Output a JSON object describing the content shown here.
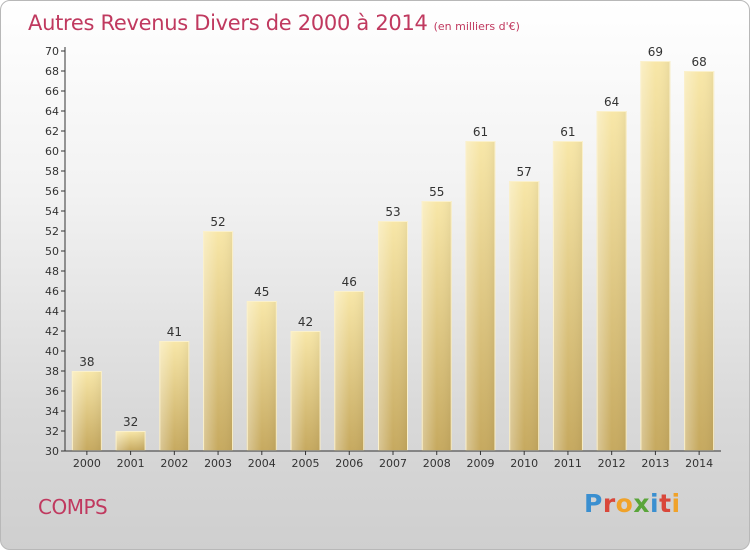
{
  "header": {
    "title": "Autres Revenus Divers de 2000 à 2014",
    "subtitle": "(en milliers d'€)"
  },
  "footer": {
    "place": "COMPS",
    "logo": "Proxiti"
  },
  "colors": {
    "accent": "#c0395f",
    "bar_top": "#f7e4a3",
    "bar_bottom": "#c8ab62",
    "axis": "#333333",
    "grid": "#888888"
  },
  "chart_data": {
    "type": "bar",
    "categories": [
      "2000",
      "2001",
      "2002",
      "2003",
      "2004",
      "2005",
      "2006",
      "2007",
      "2008",
      "2009",
      "2010",
      "2011",
      "2012",
      "2013",
      "2014"
    ],
    "values": [
      38,
      32,
      41,
      52,
      45,
      42,
      46,
      53,
      55,
      61,
      57,
      61,
      64,
      69,
      68
    ],
    "ylim": [
      30,
      70
    ],
    "ytick_step": 2,
    "grid": false,
    "legend": "none",
    "xlabel": "",
    "ylabel": ""
  }
}
